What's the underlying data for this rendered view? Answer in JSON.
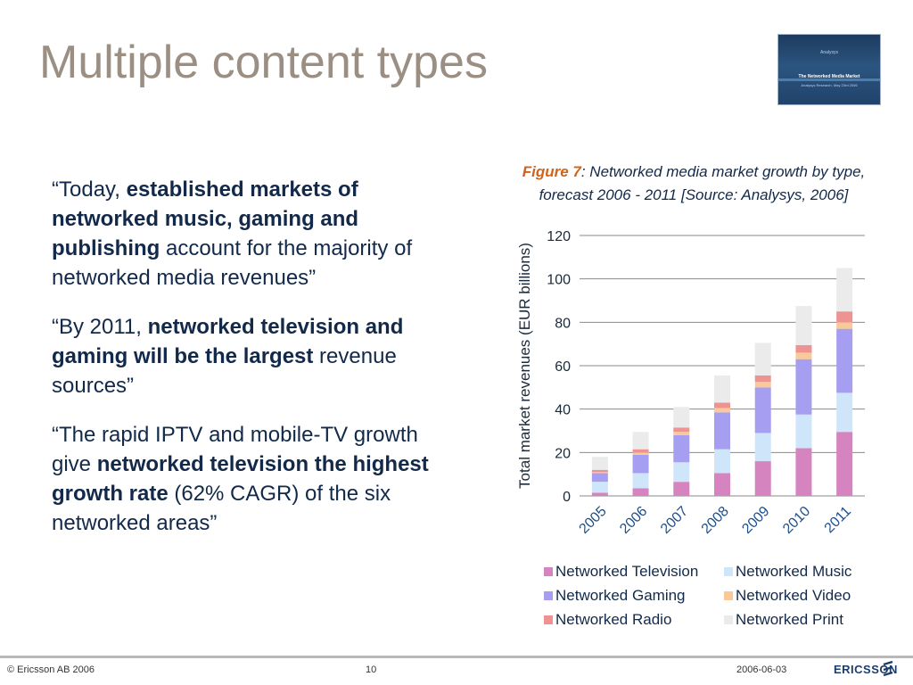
{
  "title": "Multiple content types",
  "thumbnail": {
    "brand": "Analysys",
    "heading": "The Networked Media Market",
    "sub": "Analysys Research, May 23rd 2006"
  },
  "quotes": [
    {
      "pre": "“Today, ",
      "bold": "established markets of networked music, gaming and publishing",
      "post": " account for the majority of networked media revenues”"
    },
    {
      "pre": "“By 2011, ",
      "bold": "networked television and gaming will be the largest",
      "post": " revenue sources”"
    },
    {
      "pre": "“The rapid IPTV and mobile-TV growth give ",
      "bold": "networked television the highest growth rate",
      "post": " (62% CAGR) of the six networked areas”"
    }
  ],
  "caption": {
    "fig_label": "Figure 7",
    "text": ": Networked media market growth by type, forecast 2006 - 2011 [Source: Analysys, 2006]"
  },
  "chart_data": {
    "type": "bar",
    "stacked": true,
    "categories": [
      "2005",
      "2006",
      "2007",
      "2008",
      "2009",
      "2010",
      "2011"
    ],
    "ylabel": "Total market revenues (EUR billions)",
    "ylim": [
      0,
      120
    ],
    "yticks": [
      0,
      20,
      40,
      60,
      80,
      100,
      120
    ],
    "grid": true,
    "legend_position": "bottom",
    "series": [
      {
        "name": "Networked Television",
        "color": "#d584bf",
        "values": [
          1.5,
          3.5,
          6.5,
          10.5,
          16,
          22,
          29.5
        ]
      },
      {
        "name": "Networked Music",
        "color": "#cfe6fa",
        "values": [
          5,
          7,
          9,
          11,
          13,
          15.5,
          18
        ]
      },
      {
        "name": "Networked Gaming",
        "color": "#a69ef0",
        "values": [
          4,
          8.5,
          12.5,
          17,
          21,
          25.5,
          29.5
        ]
      },
      {
        "name": "Networked Video",
        "color": "#f9c999",
        "values": [
          0.5,
          1,
          1.5,
          2,
          2.5,
          3,
          3
        ]
      },
      {
        "name": "Networked Radio",
        "color": "#ee9292",
        "values": [
          1,
          1.5,
          2,
          2.5,
          3,
          3.5,
          5
        ]
      },
      {
        "name": "Networked Print",
        "color": "#ebebeb",
        "values": [
          6,
          8,
          9.5,
          12.5,
          15,
          18,
          20
        ]
      }
    ]
  },
  "footer": {
    "copyright": "© Ericsson AB 2006",
    "page": "10",
    "date": "2006-06-03",
    "logo": "ERICSSON"
  }
}
